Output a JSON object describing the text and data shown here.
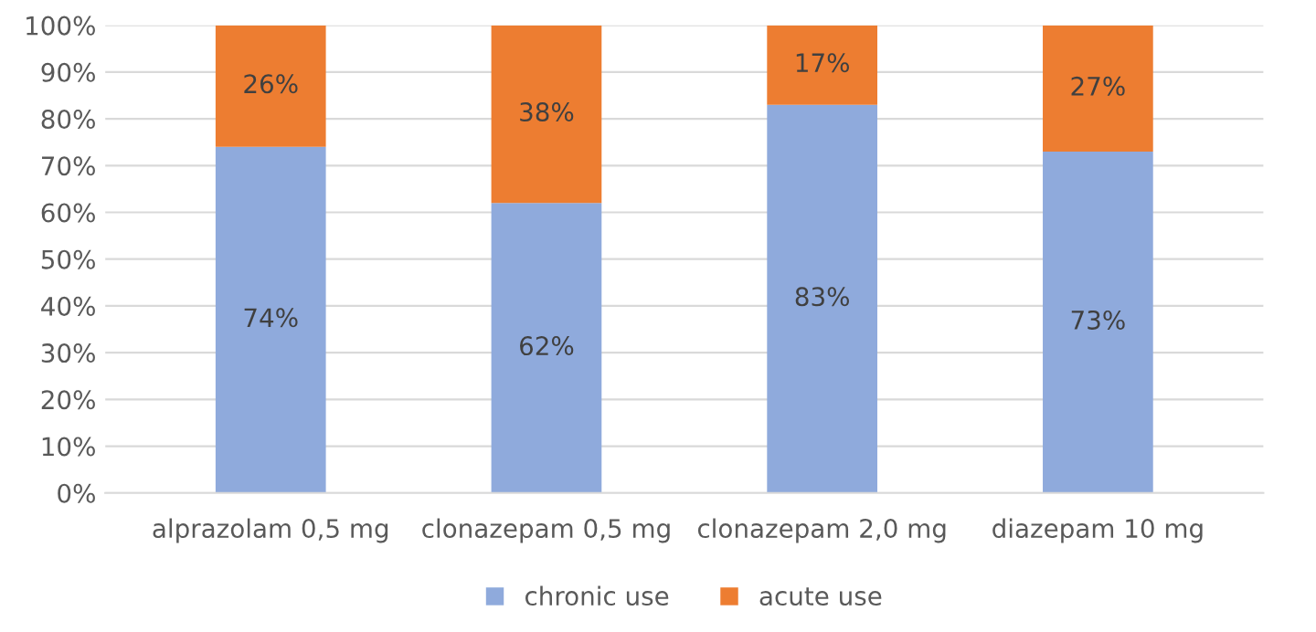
{
  "chart_data": {
    "type": "bar",
    "stacked": true,
    "categories": [
      "alprazolam 0,5 mg",
      "clonazepam 0,5 mg",
      "clonazepam 2,0 mg",
      "diazepam 10 mg"
    ],
    "series": [
      {
        "name": "chronic use",
        "color": "#8faadc",
        "values": [
          74,
          62,
          83,
          73
        ],
        "value_labels": [
          "74%",
          "62%",
          "83%",
          "73%"
        ]
      },
      {
        "name": "acute use",
        "color": "#ed7d31",
        "values": [
          26,
          38,
          17,
          27
        ],
        "value_labels": [
          "26%",
          "38%",
          "17%",
          "27%"
        ]
      }
    ],
    "ylim": [
      0,
      100
    ],
    "yticks": [
      {
        "value": 0,
        "label": "0%"
      },
      {
        "value": 10,
        "label": "10%"
      },
      {
        "value": 20,
        "label": "20%"
      },
      {
        "value": 30,
        "label": "30%"
      },
      {
        "value": 40,
        "label": "40%"
      },
      {
        "value": 50,
        "label": "50%"
      },
      {
        "value": 60,
        "label": "60%"
      },
      {
        "value": 70,
        "label": "70%"
      },
      {
        "value": 80,
        "label": "80%"
      },
      {
        "value": 90,
        "label": "90%"
      },
      {
        "value": 100,
        "label": "100%"
      }
    ],
    "grid": "y",
    "legend": "bottom"
  }
}
